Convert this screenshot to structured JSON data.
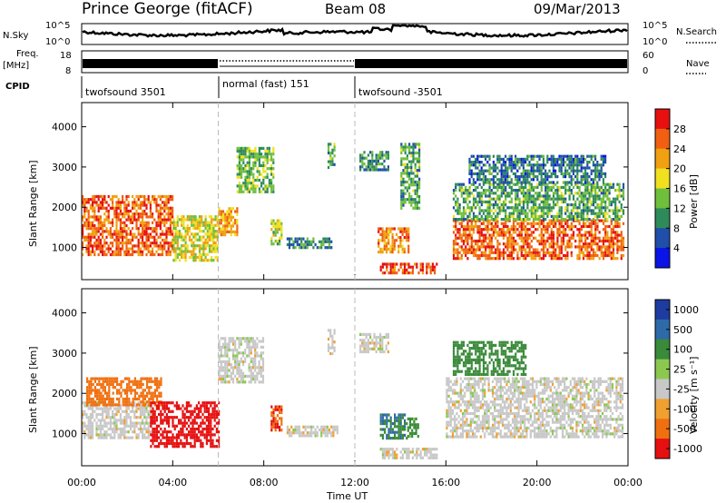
{
  "header": {
    "station": "Prince George (fitACF)",
    "beam": "Beam 08",
    "date": "09/Mar/2013"
  },
  "side_labels": {
    "nsky": "N.Sky",
    "nsearch": "N.Search",
    "freq_line1": "Freq.",
    "freq_line2": "[MHz]",
    "nave": "Nave",
    "cpid": "CPID"
  },
  "noise_panel": {
    "left_ticks": [
      "10^5",
      "10^0"
    ],
    "right_ticks": [
      "10^5",
      "10^0"
    ]
  },
  "freq_panel": {
    "left_ticks": [
      "18",
      "8"
    ],
    "right_ticks": [
      "60",
      "0"
    ]
  },
  "cpid_segments": [
    {
      "label": "twofsound 3501",
      "start_h": 0,
      "end_h": 6
    },
    {
      "label": "normal (fast) 151",
      "start_h": 6,
      "end_h": 12
    },
    {
      "label": "twofsound -3501",
      "start_h": 12,
      "end_h": 24
    }
  ],
  "colors": {
    "scatter_white": "#ffffff",
    "ground_gray": "#c8c8c8"
  },
  "chart_data": [
    {
      "type": "heatmap",
      "title": "",
      "xlabel": "Time UT",
      "ylabel": "Slant Range [km]",
      "xlim": [
        0,
        24
      ],
      "ylim": [
        200,
        4600
      ],
      "x_ticks": [
        "00:00",
        "04:00",
        "08:00",
        "12:00",
        "16:00",
        "20:00",
        "00:00"
      ],
      "y_ticks": [
        "1000",
        "2000",
        "3000",
        "4000"
      ],
      "colorbar": {
        "label": "Power [dB]",
        "ticks": [
          "4",
          "8",
          "12",
          "16",
          "20",
          "24",
          "28"
        ],
        "colors": [
          "#0a14e6",
          "#1f4fa8",
          "#2e8a5a",
          "#6fbf3c",
          "#f0e020",
          "#f0a010",
          "#f06010",
          "#e61010"
        ]
      },
      "regions": [
        {
          "t0": 0.0,
          "t1": 4.0,
          "r0": 800,
          "r1": 2300,
          "level": 26
        },
        {
          "t0": 4.0,
          "t1": 6.0,
          "r0": 700,
          "r1": 1800,
          "level": 18
        },
        {
          "t0": 6.0,
          "t1": 6.8,
          "r0": 1300,
          "r1": 2000,
          "level": 22
        },
        {
          "t0": 6.8,
          "t1": 8.4,
          "r0": 2400,
          "r1": 3500,
          "level": 14
        },
        {
          "t0": 8.3,
          "t1": 8.8,
          "r0": 1100,
          "r1": 1700,
          "level": 16
        },
        {
          "t0": 9.0,
          "t1": 11.0,
          "r0": 1000,
          "r1": 1250,
          "level": 10
        },
        {
          "t0": 10.8,
          "t1": 11.1,
          "r0": 3000,
          "r1": 3600,
          "level": 12
        },
        {
          "t0": 12.2,
          "t1": 13.5,
          "r0": 2900,
          "r1": 3400,
          "level": 10
        },
        {
          "t0": 13.0,
          "t1": 14.4,
          "r0": 900,
          "r1": 1500,
          "level": 24
        },
        {
          "t0": 13.1,
          "t1": 15.6,
          "r0": 380,
          "r1": 620,
          "level": 28
        },
        {
          "t0": 14.0,
          "t1": 14.8,
          "r0": 2000,
          "r1": 3600,
          "level": 12
        },
        {
          "t0": 16.3,
          "t1": 23.8,
          "r0": 700,
          "r1": 1700,
          "level": 26
        },
        {
          "t0": 16.3,
          "t1": 23.8,
          "r0": 1700,
          "r1": 2600,
          "level": 12
        },
        {
          "t0": 17.0,
          "t1": 23.0,
          "r0": 2600,
          "r1": 3300,
          "level": 8
        }
      ]
    },
    {
      "type": "heatmap",
      "title": "",
      "xlabel": "Time UT",
      "ylabel": "Slant Range [km]",
      "xlim": [
        0,
        24
      ],
      "ylim": [
        200,
        4600
      ],
      "x_ticks": [
        "00:00",
        "04:00",
        "08:00",
        "12:00",
        "16:00",
        "20:00",
        "00:00"
      ],
      "y_ticks": [
        "1000",
        "2000",
        "3000",
        "4000"
      ],
      "colorbar": {
        "label": "Velocity [m s⁻¹]",
        "ticks": [
          "1000",
          "500",
          "100",
          "25",
          "-25",
          "-100",
          "-500",
          "-1000"
        ],
        "colors": [
          "#1e3ca0",
          "#2e6aa8",
          "#3a8a3a",
          "#8cc850",
          "#c8c8c8",
          "#f0a030",
          "#f07010",
          "#e61010"
        ]
      },
      "regions": [
        {
          "t0": 0.0,
          "t1": 3.0,
          "r0": 900,
          "r1": 1800,
          "level": 0
        },
        {
          "t0": 0.2,
          "t1": 3.5,
          "r0": 1700,
          "r1": 2400,
          "level": -150
        },
        {
          "t0": 3.0,
          "t1": 6.0,
          "r0": 700,
          "r1": 1800,
          "level": -400
        },
        {
          "t0": 6.0,
          "t1": 8.0,
          "r0": 2300,
          "r1": 3400,
          "level": 0
        },
        {
          "t0": 8.3,
          "t1": 8.8,
          "r0": 1100,
          "r1": 1700,
          "level": -300
        },
        {
          "t0": 9.0,
          "t1": 11.2,
          "r0": 950,
          "r1": 1200,
          "level": 0
        },
        {
          "t0": 10.8,
          "t1": 11.1,
          "r0": 3000,
          "r1": 3600,
          "level": 0
        },
        {
          "t0": 12.2,
          "t1": 13.5,
          "r0": 3000,
          "r1": 3500,
          "level": 0
        },
        {
          "t0": 13.1,
          "t1": 14.3,
          "r0": 900,
          "r1": 1500,
          "level": 300
        },
        {
          "t0": 14.3,
          "t1": 14.8,
          "r0": 900,
          "r1": 1400,
          "level": 80
        },
        {
          "t0": 13.1,
          "t1": 15.6,
          "r0": 400,
          "r1": 650,
          "level": 0
        },
        {
          "t0": 16.0,
          "t1": 23.8,
          "r0": 900,
          "r1": 2400,
          "level": 0
        },
        {
          "t0": 16.3,
          "t1": 19.5,
          "r0": 2500,
          "r1": 3300,
          "level": 100
        }
      ]
    }
  ]
}
